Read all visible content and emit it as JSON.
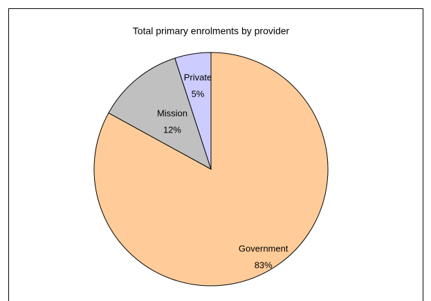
{
  "chart_data": {
    "type": "pie",
    "title": "Total primary enrolments by provider",
    "categories": [
      "Government",
      "Mission",
      "Private"
    ],
    "values": [
      83,
      12,
      5
    ],
    "value_labels": [
      "83%",
      "12%",
      "5%"
    ],
    "colors": [
      "#ffcc99",
      "#c0c0c0",
      "#ccccff"
    ]
  }
}
